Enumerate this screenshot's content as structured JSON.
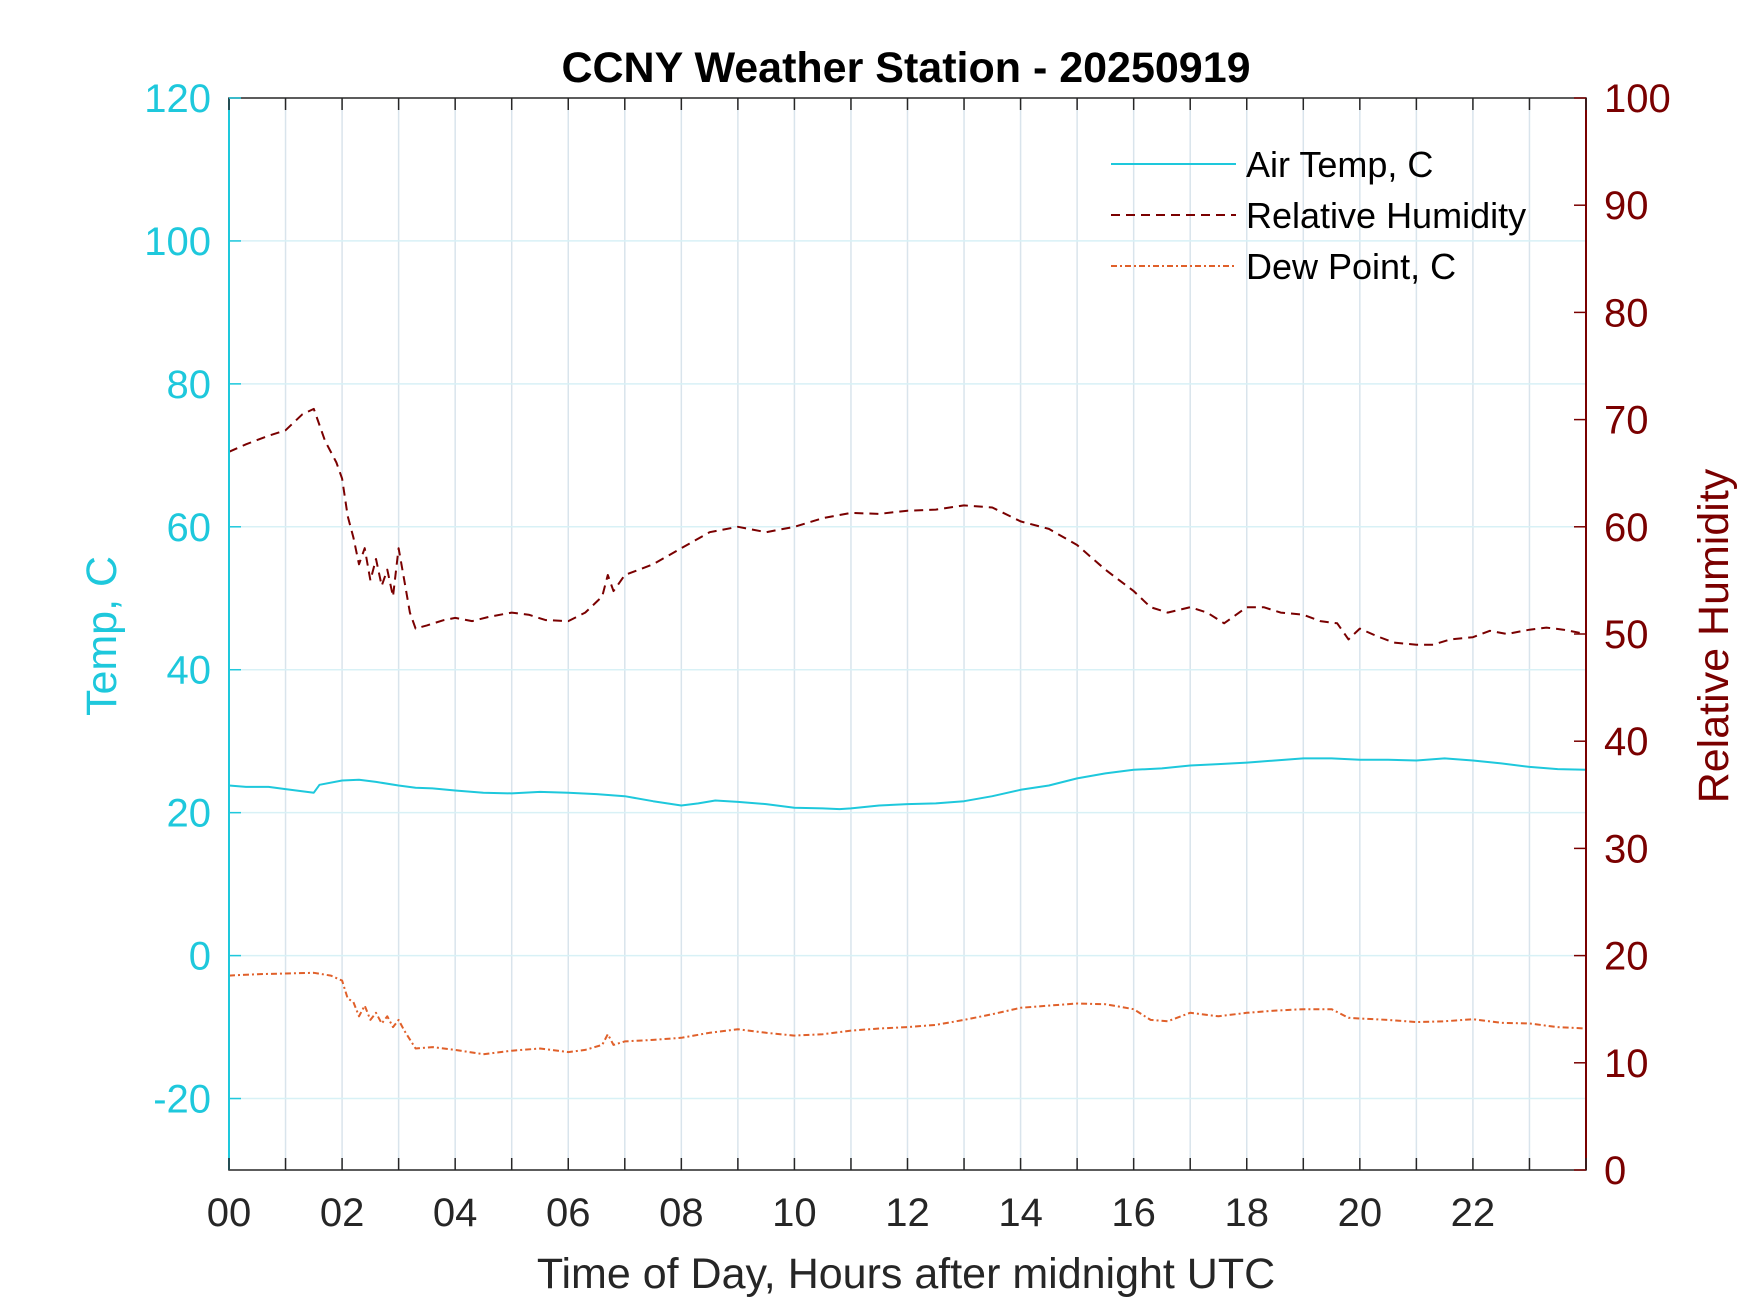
{
  "chart_data": {
    "type": "line",
    "title": "CCNY Weather Station - 20250919",
    "xlabel": "Time of Day, Hours after midnight UTC",
    "ylabel_left": "Temp, C",
    "ylabel_right": "Relative Humidity",
    "xlim": [
      0,
      24
    ],
    "ylim_left": [
      -30,
      120
    ],
    "ylim_right": [
      0,
      100
    ],
    "x_ticks": [
      0,
      2,
      4,
      6,
      8,
      10,
      12,
      14,
      16,
      18,
      20,
      22
    ],
    "x_tick_labels": [
      "00",
      "02",
      "04",
      "06",
      "08",
      "10",
      "12",
      "14",
      "16",
      "18",
      "20",
      "22"
    ],
    "y_ticks_left": [
      -20,
      0,
      20,
      40,
      60,
      80,
      100,
      120
    ],
    "y_ticks_right": [
      0,
      10,
      20,
      30,
      40,
      50,
      60,
      70,
      80,
      90,
      100
    ],
    "grid": true,
    "legend_position": "top-right",
    "colors": {
      "air_temp": "#1ec8dc",
      "relative_humidity": "#7a0000",
      "dew_point": "#e0602a",
      "grid": "#d9e4ec"
    },
    "series": [
      {
        "name": "Air Temp, C",
        "axis": "left",
        "style": "solid",
        "x": [
          0,
          0.3,
          0.7,
          1.0,
          1.5,
          1.6,
          2.0,
          2.3,
          2.6,
          3.0,
          3.3,
          3.6,
          4.0,
          4.5,
          5.0,
          5.5,
          6.0,
          6.5,
          7.0,
          7.5,
          8.0,
          8.3,
          8.6,
          9.0,
          9.5,
          10.0,
          10.5,
          10.8,
          11.0,
          11.5,
          12.0,
          12.5,
          13.0,
          13.5,
          14.0,
          14.5,
          15.0,
          15.5,
          16.0,
          16.5,
          17.0,
          17.5,
          18.0,
          18.5,
          19.0,
          19.5,
          20.0,
          20.5,
          21.0,
          21.5,
          22.0,
          22.5,
          23.0,
          23.5,
          24.0
        ],
        "values": [
          23.8,
          23.6,
          23.6,
          23.3,
          22.8,
          23.9,
          24.5,
          24.6,
          24.3,
          23.8,
          23.5,
          23.4,
          23.1,
          22.8,
          22.7,
          22.9,
          22.8,
          22.6,
          22.3,
          21.6,
          21.0,
          21.3,
          21.7,
          21.5,
          21.2,
          20.7,
          20.6,
          20.5,
          20.6,
          21.0,
          21.2,
          21.3,
          21.6,
          22.3,
          23.2,
          23.8,
          24.8,
          25.5,
          26.0,
          26.2,
          26.6,
          26.8,
          27.0,
          27.3,
          27.6,
          27.6,
          27.4,
          27.4,
          27.3,
          27.6,
          27.3,
          26.9,
          26.4,
          26.1,
          26.0
        ]
      },
      {
        "name": "Relative Humidity",
        "axis": "right",
        "style": "dashed",
        "x": [
          0,
          0.3,
          0.7,
          1.0,
          1.3,
          1.5,
          1.7,
          1.9,
          2.0,
          2.1,
          2.2,
          2.3,
          2.4,
          2.5,
          2.6,
          2.7,
          2.8,
          2.9,
          3.0,
          3.1,
          3.2,
          3.3,
          3.5,
          3.8,
          4.0,
          4.3,
          4.6,
          5.0,
          5.3,
          5.6,
          6.0,
          6.3,
          6.6,
          6.7,
          6.8,
          7.0,
          7.5,
          8.0,
          8.5,
          9.0,
          9.5,
          10.0,
          10.5,
          11.0,
          11.5,
          12.0,
          12.5,
          13.0,
          13.5,
          14.0,
          14.5,
          15.0,
          15.5,
          16.0,
          16.3,
          16.6,
          17.0,
          17.3,
          17.6,
          18.0,
          18.3,
          18.6,
          19.0,
          19.3,
          19.6,
          19.8,
          20.0,
          20.3,
          20.6,
          21.0,
          21.3,
          21.6,
          22.0,
          22.3,
          22.6,
          23.0,
          23.3,
          23.6,
          24.0
        ],
        "values": [
          67.0,
          67.7,
          68.5,
          69.0,
          70.5,
          71.0,
          68.0,
          66.0,
          64.5,
          61.0,
          59.0,
          56.5,
          58.0,
          55.0,
          57.0,
          54.5,
          56.0,
          53.5,
          58.0,
          55.0,
          52.0,
          50.5,
          50.8,
          51.3,
          51.5,
          51.2,
          51.6,
          52.0,
          51.8,
          51.3,
          51.2,
          52.0,
          53.5,
          55.5,
          54.0,
          55.5,
          56.5,
          58.0,
          59.5,
          60.0,
          59.5,
          60.0,
          60.8,
          61.3,
          61.2,
          61.5,
          61.6,
          62.0,
          61.8,
          60.5,
          59.8,
          58.3,
          56.0,
          54.0,
          52.5,
          52.0,
          52.5,
          52.0,
          51.0,
          52.5,
          52.5,
          52.0,
          51.8,
          51.2,
          51.0,
          49.5,
          50.5,
          49.8,
          49.2,
          49.0,
          49.0,
          49.5,
          49.7,
          50.3,
          50.0,
          50.4,
          50.6,
          50.4,
          50.0
        ]
      },
      {
        "name": "Dew Point, C",
        "axis": "left",
        "style": "dash-dot",
        "x": [
          0,
          0.5,
          1.0,
          1.5,
          1.8,
          2.0,
          2.1,
          2.2,
          2.3,
          2.4,
          2.5,
          2.6,
          2.7,
          2.8,
          2.9,
          3.0,
          3.1,
          3.3,
          3.6,
          4.0,
          4.5,
          5.0,
          5.5,
          6.0,
          6.3,
          6.6,
          6.7,
          6.8,
          7.0,
          7.5,
          8.0,
          8.5,
          9.0,
          9.5,
          10.0,
          10.5,
          11.0,
          11.5,
          12.0,
          12.5,
          13.0,
          13.5,
          14.0,
          14.5,
          15.0,
          15.5,
          16.0,
          16.3,
          16.6,
          17.0,
          17.5,
          18.0,
          18.5,
          19.0,
          19.5,
          19.8,
          20.0,
          20.5,
          21.0,
          21.5,
          22.0,
          22.5,
          23.0,
          23.5,
          24.0
        ],
        "values": [
          -2.8,
          -2.6,
          -2.5,
          -2.4,
          -2.8,
          -3.5,
          -6.0,
          -6.5,
          -8.5,
          -7.0,
          -9.0,
          -8.0,
          -9.5,
          -8.5,
          -10.0,
          -9.0,
          -10.5,
          -13.0,
          -12.8,
          -13.2,
          -13.8,
          -13.3,
          -13.0,
          -13.5,
          -13.2,
          -12.5,
          -11.0,
          -12.5,
          -12.0,
          -11.8,
          -11.5,
          -10.8,
          -10.3,
          -10.8,
          -11.2,
          -11.0,
          -10.5,
          -10.2,
          -10.0,
          -9.7,
          -9.0,
          -8.2,
          -7.3,
          -7.0,
          -6.7,
          -6.8,
          -7.5,
          -9.0,
          -9.2,
          -8.0,
          -8.5,
          -8.0,
          -7.7,
          -7.5,
          -7.5,
          -8.7,
          -8.8,
          -9.0,
          -9.3,
          -9.2,
          -8.9,
          -9.4,
          -9.5,
          -10.0,
          -10.2
        ]
      }
    ]
  }
}
